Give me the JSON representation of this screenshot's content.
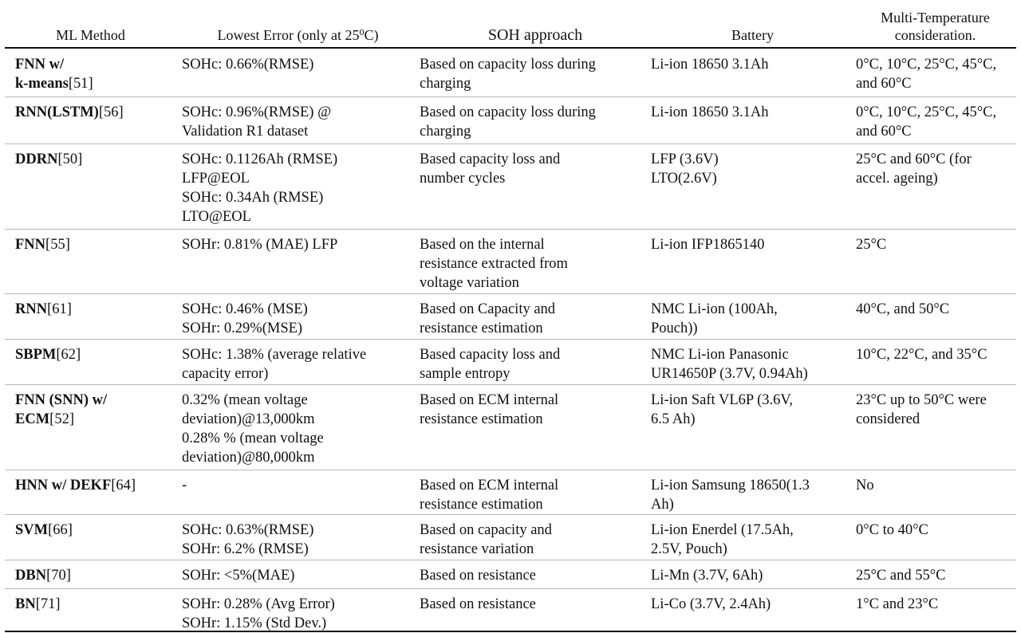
{
  "header": {
    "ml_method": "ML Method",
    "lowest_error_prefix": "Lowest Error (only at 25",
    "lowest_error_sup": "0",
    "lowest_error_suffix": "C)",
    "soh_approach": "SOH approach",
    "battery": "Battery",
    "multi_temp_line1": "Multi-Temperature",
    "multi_temp_line2": "consideration."
  },
  "rows": [
    {
      "bold": "FNN w/\nk-means",
      "ref": "[51]",
      "error": "SOHc: 0.66%(RMSE)",
      "approach": "Based on capacity loss during\ncharging",
      "battery": "Li-ion 18650 3.1Ah",
      "temp": "0°C, 10°C, 25°C, 45°C,\nand 60°C"
    },
    {
      "bold": "RNN(LSTM)",
      "ref": "[56]",
      "error": "SOHc: 0.96%(RMSE) @\nValidation R1 dataset",
      "approach": "Based on capacity loss during\ncharging",
      "battery": "Li-ion 18650 3.1Ah",
      "temp": "0°C, 10°C, 25°C, 45°C,\nand 60°C"
    },
    {
      "bold": "DDRN",
      "ref": "[50]",
      "error": "SOHc: 0.1126Ah (RMSE)\nLFP@EOL\nSOHc: 0.34Ah (RMSE)\nLTO@EOL",
      "approach": "Based capacity loss and\nnumber cycles",
      "battery": "LFP (3.6V)\nLTO(2.6V)",
      "temp": "25°C and 60°C (for\naccel. ageing)"
    },
    {
      "bold": "FNN",
      "ref": "[55]",
      "error": "SOHr: 0.81% (MAE) LFP",
      "approach": "Based on the internal\nresistance extracted from\nvoltage variation",
      "battery": "Li-ion IFP1865140",
      "temp": "25°C"
    },
    {
      "bold": "RNN",
      "ref": "[61]",
      "error": "SOHc: 0.46% (MSE)\nSOHr: 0.29%(MSE)",
      "approach": "Based on Capacity and\nresistance estimation",
      "battery": "NMC Li-ion (100Ah,\nPouch))",
      "temp": "40°C, and 50°C"
    },
    {
      "bold": "SBPM",
      "ref": "[62]",
      "error": "SOHc: 1.38% (average relative\ncapacity error)",
      "approach": "Based capacity loss and\nsample entropy",
      "battery": "NMC Li-ion Panasonic\nUR14650P (3.7V, 0.94Ah)",
      "temp": "10°C, 22°C, and 35°C"
    },
    {
      "bold": "FNN (SNN) w/\nECM",
      "ref": "[52]",
      "error": "0.32% (mean voltage\ndeviation)@13,000km\n0.28% % (mean voltage\ndeviation)@80,000km",
      "approach": "Based on ECM internal\nresistance estimation",
      "battery": "Li-ion Saft VL6P (3.6V,\n6.5 Ah)",
      "temp": "23°C up to 50°C were\nconsidered"
    },
    {
      "bold": "HNN w/ DEKF",
      "ref": "[64]",
      "error": "-",
      "approach": "Based on ECM internal\nresistance estimation",
      "battery": "Li-ion Samsung 18650(1.3\nAh)",
      "temp": "No"
    },
    {
      "bold": "SVM",
      "ref": "[66]",
      "error": "SOHc: 0.63%(RMSE)\nSOHr: 6.2% (RMSE)",
      "approach": "Based on capacity and\nresistance variation",
      "battery": "Li-ion Enerdel (17.5Ah,\n2.5V, Pouch)",
      "temp": "0°C to 40°C"
    },
    {
      "bold": "DBN",
      "ref": "[70]",
      "error": "SOHr: <5%(MAE)",
      "approach": "Based on resistance",
      "battery": "Li-Mn (3.7V, 6Ah)",
      "temp": "25°C and 55°C"
    },
    {
      "bold": "BN",
      "ref": "[71]",
      "error": "SOHr: 0.28% (Avg Error)\nSOHr: 1.15% (Std Dev.)",
      "approach": "Based on resistance",
      "battery": "Li-Co (3.7V, 2.4Ah)",
      "temp": " 1°C and 23°C"
    }
  ]
}
